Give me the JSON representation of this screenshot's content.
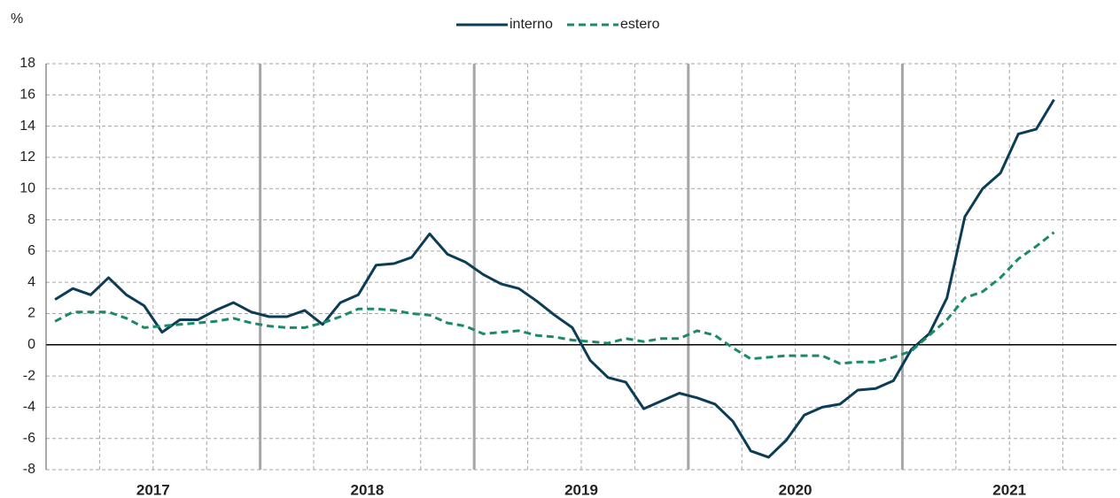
{
  "chart_data": {
    "type": "line",
    "y_unit_label": "%",
    "year_labels": [
      "2017",
      "2018",
      "2019",
      "2020",
      "2021"
    ],
    "categories": [
      null,
      null,
      null,
      null,
      null,
      null,
      null,
      null,
      null,
      null,
      null,
      null,
      null,
      null,
      null,
      null,
      null,
      null,
      null,
      null,
      null,
      null,
      null,
      null,
      null,
      null,
      null,
      null,
      null,
      null,
      null,
      null,
      null,
      null,
      null,
      null,
      null,
      null,
      null,
      null,
      null,
      null,
      null,
      null,
      null,
      null,
      null,
      null,
      null,
      null,
      null,
      null,
      null,
      null,
      null,
      null,
      null
    ],
    "series": [
      {
        "name": "interno",
        "color": "#0d3d56",
        "dash": false,
        "values": [
          2.9,
          3.6,
          3.2,
          4.3,
          3.2,
          2.5,
          0.8,
          1.6,
          1.6,
          2.2,
          2.7,
          2.1,
          1.8,
          1.8,
          2.2,
          1.3,
          2.7,
          3.2,
          5.1,
          5.2,
          5.6,
          7.1,
          5.8,
          5.3,
          4.5,
          3.9,
          3.6,
          2.8,
          1.9,
          1.1,
          -1.0,
          -2.1,
          -2.4,
          -4.1,
          -3.6,
          -3.1,
          -3.4,
          -3.8,
          -4.9,
          -6.8,
          -7.2,
          -6.1,
          -4.5,
          -4.0,
          -3.8,
          -2.9,
          -2.8,
          -2.3,
          -0.3,
          0.7,
          3.0,
          8.2,
          10.0,
          11.0,
          13.5,
          13.8,
          15.7
        ]
      },
      {
        "name": "estero",
        "color": "#1a8a6a",
        "dash": true,
        "values": [
          1.5,
          2.1,
          2.1,
          2.1,
          1.7,
          1.1,
          1.2,
          1.3,
          1.4,
          1.5,
          1.7,
          1.4,
          1.2,
          1.1,
          1.1,
          1.4,
          1.8,
          2.3,
          2.3,
          2.2,
          2.0,
          1.9,
          1.4,
          1.2,
          0.7,
          0.8,
          0.9,
          0.6,
          0.5,
          0.3,
          0.2,
          0.1,
          0.4,
          0.2,
          0.4,
          0.4,
          0.9,
          0.6,
          -0.2,
          -0.9,
          -0.8,
          -0.7,
          -0.7,
          -0.7,
          -1.2,
          -1.1,
          -1.1,
          -0.8,
          -0.4,
          0.6,
          1.6,
          3.0,
          3.4,
          4.3,
          5.5,
          6.3,
          7.2
        ]
      }
    ],
    "ylim": [
      -8,
      18
    ],
    "yticks": [
      -8,
      -6,
      -4,
      -2,
      0,
      2,
      4,
      6,
      8,
      10,
      12,
      14,
      16,
      18
    ],
    "grid": true,
    "legend": "top"
  }
}
